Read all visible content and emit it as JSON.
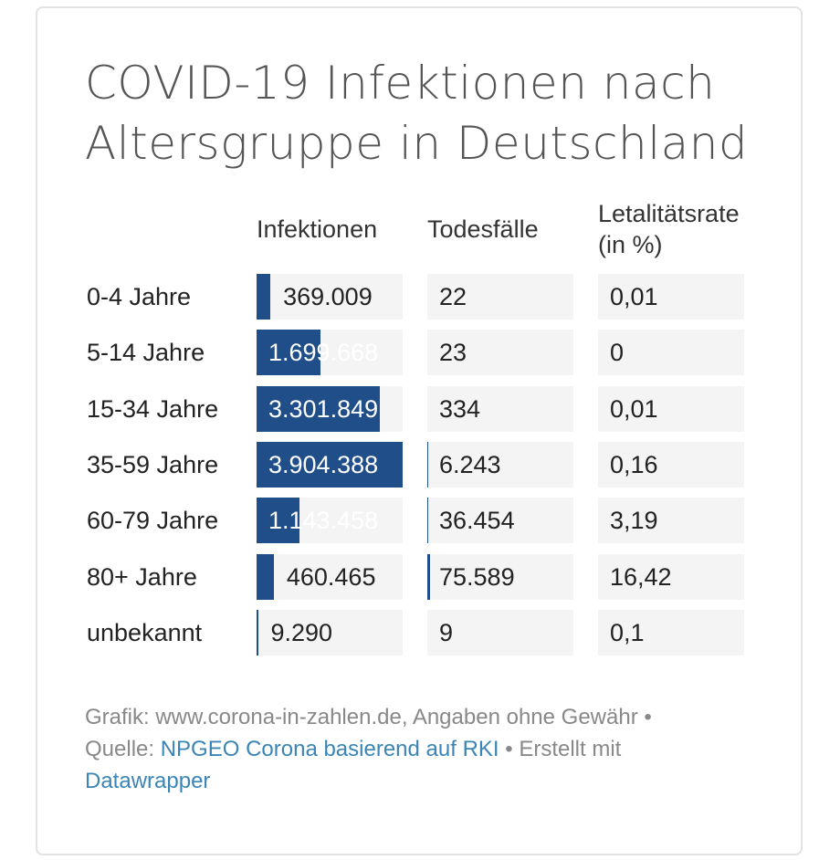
{
  "title": "COVID-19 Infektionen nach Altersgruppe in Deutschland",
  "colors": {
    "bar": "#1f4e89",
    "cell_bg": "#f4f4f4",
    "link": "#3a85b5"
  },
  "chart_data": {
    "type": "table",
    "title": "COVID-19 Infektionen nach Altersgruppe in Deutschland",
    "columns": [
      "",
      "Infektionen",
      "Todesfälle",
      "Letalitätsrate (in %)"
    ],
    "rows": [
      {
        "label": "0-4 Jahre",
        "infektionen": 369009,
        "infektionen_text": "369.009",
        "todesfaelle": 22,
        "todesfaelle_text": "22",
        "letalitaet_text": "0,01"
      },
      {
        "label": "5-14 Jahre",
        "infektionen": 1699668,
        "infektionen_text": "1.699.668",
        "todesfaelle": 23,
        "todesfaelle_text": "23",
        "letalitaet_text": "0"
      },
      {
        "label": "15-34 Jahre",
        "infektionen": 3301849,
        "infektionen_text": "3.301.849",
        "todesfaelle": 334,
        "todesfaelle_text": "334",
        "letalitaet_text": "0,01"
      },
      {
        "label": "35-59 Jahre",
        "infektionen": 3904388,
        "infektionen_text": "3.904.388",
        "todesfaelle": 6243,
        "todesfaelle_text": "6.243",
        "letalitaet_text": "0,16"
      },
      {
        "label": "60-79 Jahre",
        "infektionen": 1143458,
        "infektionen_text": "1.143.458",
        "todesfaelle": 36454,
        "todesfaelle_text": "36.454",
        "letalitaet_text": "3,19"
      },
      {
        "label": "80+ Jahre",
        "infektionen": 460465,
        "infektionen_text": "460.465",
        "todesfaelle": 75589,
        "todesfaelle_text": "75.589",
        "letalitaet_text": "16,42"
      },
      {
        "label": "unbekannt",
        "infektionen": 9290,
        "infektionen_text": "9.290",
        "todesfaelle": 9,
        "todesfaelle_text": "9",
        "letalitaet_text": "0,1"
      }
    ],
    "bar_max": 3904388
  },
  "headers": {
    "infektionen": "Infektionen",
    "todesfaelle": "Todesfälle",
    "letalitaet_1": "Letalitätsrate",
    "letalitaet_2": "(in %)"
  },
  "footer": {
    "grafik": "Grafik: www.corona-in-zahlen.de, Angaben ohne Gewähr •",
    "quelle_label": "Quelle:",
    "quelle_link": "NPGEO Corona basierend auf RKI",
    "erstellt": "• Erstellt mit",
    "datawrapper": "Datawrapper"
  }
}
